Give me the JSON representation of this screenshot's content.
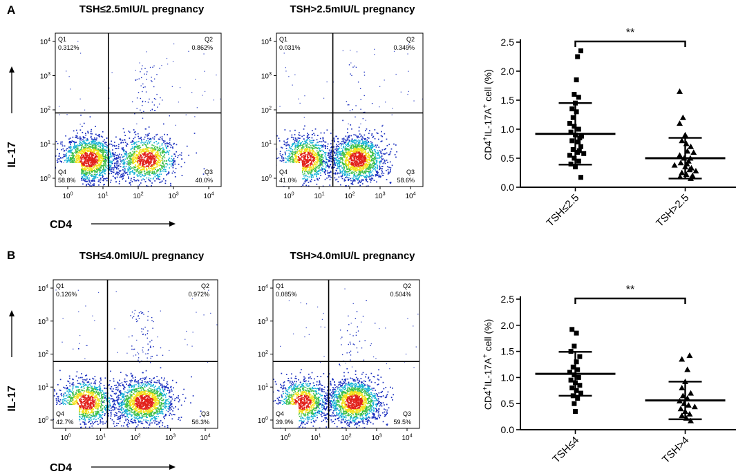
{
  "panels": [
    {
      "label": "A",
      "y_axis_label": "IL-17",
      "x_axis_label": "CD4",
      "flow_plots": [
        {
          "title": "TSH≤2.5mIU/L pregnancy",
          "quadrants": [
            {
              "name": "Q1",
              "value": "0.312%"
            },
            {
              "name": "Q2",
              "value": "0.862%"
            },
            {
              "name": "Q4",
              "value": "58.8%"
            },
            {
              "name": "Q3",
              "value": "40.0%"
            }
          ],
          "x_tick_labels": [
            "10^0",
            "10^1",
            "10^2",
            "10^3",
            "10^4"
          ],
          "y_tick_labels": [
            "10^0",
            "10^1",
            "10^2",
            "10^3",
            "10^4"
          ]
        },
        {
          "title": "TSH>2.5mIU/L pregnancy",
          "quadrants": [
            {
              "name": "Q1",
              "value": "0.031%"
            },
            {
              "name": "Q2",
              "value": "0.349%"
            },
            {
              "name": "Q4",
              "value": "41.0%"
            },
            {
              "name": "Q3",
              "value": "58.6%"
            }
          ],
          "x_tick_labels": [
            "10^0",
            "10^1",
            "10^2",
            "10^3",
            "10^4"
          ],
          "y_tick_labels": [
            "10^0",
            "10^1",
            "10^2",
            "10^3",
            "10^4"
          ]
        }
      ]
    },
    {
      "label": "B",
      "y_axis_label": "IL-17",
      "x_axis_label": "CD4",
      "flow_plots": [
        {
          "title": "TSH≤4.0mIU/L pregnancy",
          "quadrants": [
            {
              "name": "Q1",
              "value": "0.126%"
            },
            {
              "name": "Q2",
              "value": "0.972%"
            },
            {
              "name": "Q4",
              "value": "42.7%"
            },
            {
              "name": "Q3",
              "value": "56.3%"
            }
          ],
          "x_tick_labels": [
            "10^0",
            "10^1",
            "10^2",
            "10^3",
            "10^4"
          ],
          "y_tick_labels": [
            "10^0",
            "10^1",
            "10^2",
            "10^3",
            "10^4"
          ]
        },
        {
          "title": "TSH>4.0mIU/L pregnancy",
          "quadrants": [
            {
              "name": "Q1",
              "value": "0.085%"
            },
            {
              "name": "Q2",
              "value": "0.504%"
            },
            {
              "name": "Q4",
              "value": "39.9%"
            },
            {
              "name": "Q3",
              "value": "59.5%"
            }
          ],
          "x_tick_labels": [
            "10^0",
            "10^1",
            "10^2",
            "10^3",
            "10^4"
          ],
          "y_tick_labels": [
            "10^0",
            "10^1",
            "10^2",
            "10^3",
            "10^4"
          ]
        }
      ]
    }
  ],
  "colors": {
    "density_low": "#1a2fbf",
    "density_mid_low": "#19b3d6",
    "density_mid": "#3fc04a",
    "density_high": "#f3e21c",
    "density_peak": "#e2201a",
    "ink": "#000000"
  },
  "chart_data": [
    {
      "type": "scatter",
      "panel": "A",
      "ylabel": "CD4+IL-17A+ cell (%)",
      "ylabel_parts": {
        "prefix": "CD4",
        "sup1": "+",
        "mid": "IL-17A",
        "sup2": "+",
        "suffix": " cell  (%)"
      },
      "ylim": [
        0,
        2.5
      ],
      "yticks": [
        "0.0",
        "0.5",
        "1.0",
        "1.5",
        "2.0",
        "2.5"
      ],
      "categories": [
        "TSH≤2.5",
        "TSH>2.5"
      ],
      "significance": "**",
      "series": [
        {
          "name": "TSH≤2.5",
          "marker": "square",
          "mean": 0.92,
          "sd": 0.53,
          "values": [
            2.35,
            2.25,
            1.85,
            1.6,
            1.55,
            1.45,
            1.35,
            1.3,
            1.2,
            1.1,
            1.05,
            1.0,
            0.95,
            0.9,
            0.88,
            0.85,
            0.8,
            0.78,
            0.7,
            0.65,
            0.63,
            0.6,
            0.58,
            0.55,
            0.5,
            0.45,
            0.4,
            0.35,
            0.17
          ]
        },
        {
          "name": "TSH>2.5",
          "marker": "triangle",
          "mean": 0.5,
          "sd": 0.35,
          "values": [
            1.65,
            1.2,
            1.1,
            0.9,
            0.8,
            0.75,
            0.7,
            0.62,
            0.6,
            0.55,
            0.5,
            0.5,
            0.45,
            0.42,
            0.4,
            0.38,
            0.35,
            0.33,
            0.3,
            0.28,
            0.25,
            0.22,
            0.2,
            0.18,
            0.15
          ]
        }
      ]
    },
    {
      "type": "scatter",
      "panel": "B",
      "ylabel": "CD4+IL-17A+ cell (%)",
      "ylabel_parts": {
        "prefix": "CD4",
        "sup1": "+",
        "mid": "IL-17A",
        "sup2": "+",
        "suffix": " cell  (%)"
      },
      "ylim": [
        0,
        2.5
      ],
      "yticks": [
        "0.0",
        "0.5",
        "1.0",
        "1.5",
        "2.0",
        "2.5"
      ],
      "categories": [
        "TSH≤4",
        "TSH>4"
      ],
      "significance": "**",
      "series": [
        {
          "name": "TSH≤4",
          "marker": "square",
          "mean": 1.07,
          "sd": 0.42,
          "values": [
            1.92,
            1.85,
            1.6,
            1.5,
            1.4,
            1.3,
            1.2,
            1.15,
            1.1,
            1.05,
            1.0,
            0.95,
            0.9,
            0.85,
            0.8,
            0.75,
            0.7,
            0.65,
            0.6,
            0.5,
            0.35
          ]
        },
        {
          "name": "TSH>4",
          "marker": "triangle",
          "mean": 0.56,
          "sd": 0.36,
          "values": [
            1.42,
            1.35,
            1.15,
            0.92,
            0.8,
            0.7,
            0.65,
            0.6,
            0.55,
            0.5,
            0.47,
            0.44,
            0.4,
            0.35,
            0.3,
            0.27,
            0.22,
            0.17
          ]
        }
      ]
    }
  ]
}
